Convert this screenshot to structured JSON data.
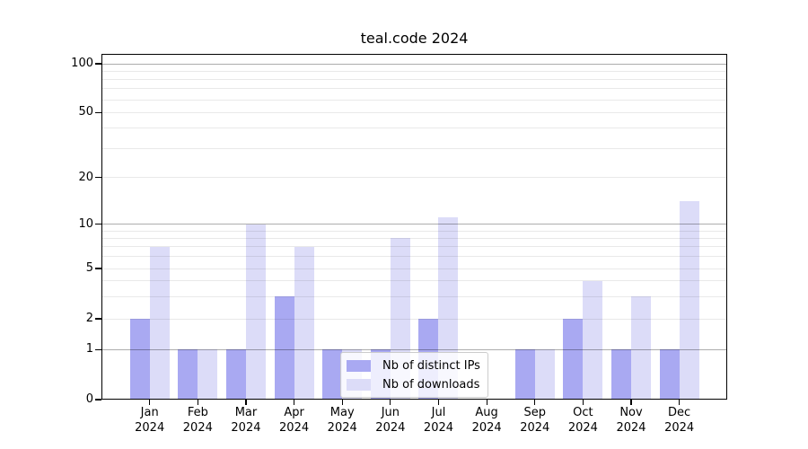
{
  "title": "teal.code 2024",
  "chart_data": {
    "type": "bar",
    "title": "teal.code 2024",
    "categories": [
      "Jan 2024",
      "Feb 2024",
      "Mar 2024",
      "Apr 2024",
      "May 2024",
      "Jun 2024",
      "Jul 2024",
      "Aug 2024",
      "Sep 2024",
      "Oct 2024",
      "Nov 2024",
      "Dec 2024"
    ],
    "series": [
      {
        "name": "Nb of distinct IPs",
        "color": "#a9a9f2",
        "values": [
          2,
          1,
          1,
          3,
          1,
          1,
          2,
          0,
          1,
          2,
          1,
          1
        ]
      },
      {
        "name": "Nb of downloads",
        "color": "#dcdcf8",
        "values": [
          7,
          1,
          10,
          7,
          1,
          8,
          11,
          0,
          1,
          4,
          3,
          14
        ]
      }
    ],
    "yscale": "log-like (0,1,2,5,10,20,50,100)",
    "yticks": [
      0,
      1,
      2,
      5,
      10,
      20,
      50,
      100
    ],
    "ylim": [
      0,
      110
    ],
    "xlabel": "",
    "ylabel": "",
    "grid": true,
    "legend_position": "lower center"
  },
  "colors": {
    "bar_distinct_ips": "#a9a9f2",
    "bar_downloads": "#dcdcf8",
    "axis": "#000000",
    "grid_major": "#adadad",
    "grid_minor": "#e8e8e8",
    "legend_border": "#cccccc"
  }
}
